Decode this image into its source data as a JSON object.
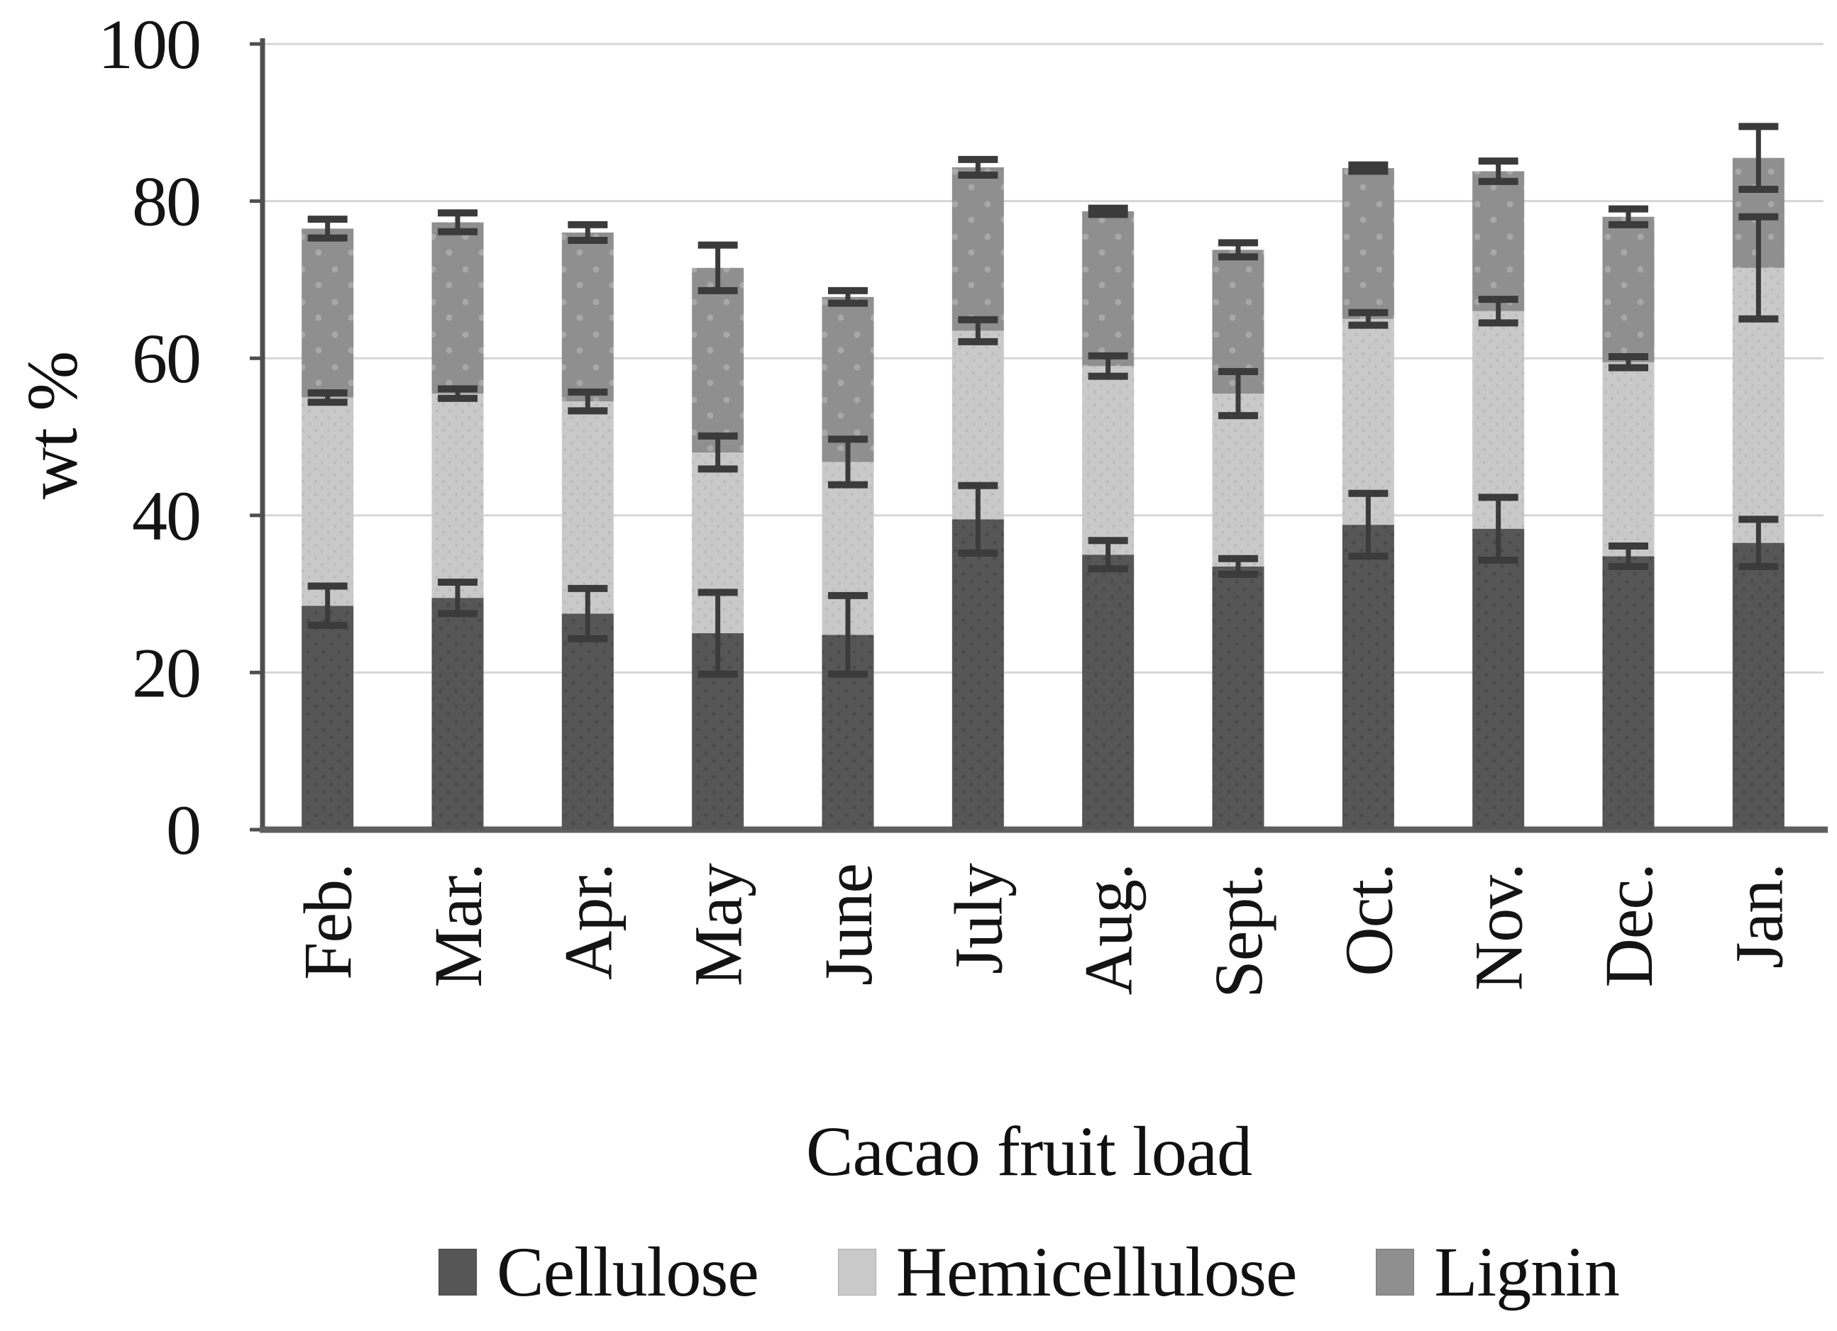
{
  "figure": {
    "background": "#ffffff",
    "axis_color": "#4f4f4f",
    "grid_color": "#d6d6d6",
    "error_bar_color": "#3b3b3b",
    "text_color": "#141414"
  },
  "chart_data": {
    "type": "bar",
    "stacked": true,
    "title": "",
    "xlabel": "Cacao fruit load",
    "ylabel": "wt %",
    "grid": true,
    "legend_position": "bottom",
    "ylim": [
      0,
      100
    ],
    "yticks": [
      0,
      20,
      40,
      60,
      80,
      100
    ],
    "categories": [
      "Feb.",
      "Mar.",
      "Apr.",
      "May",
      "June",
      "July",
      "Aug.",
      "Sept.",
      "Oct.",
      "Nov.",
      "Dec.",
      "Jan."
    ],
    "series": [
      {
        "name": "Cellulose",
        "color": "#565656",
        "texture_color": "#4a4a4a",
        "values": [
          28.5,
          29.5,
          27.5,
          25.0,
          24.8,
          39.5,
          35.0,
          33.5,
          38.8,
          38.3,
          34.8,
          36.5
        ],
        "errors": [
          2.5,
          2.0,
          3.2,
          5.2,
          5.0,
          4.3,
          1.8,
          1.0,
          4.0,
          4.0,
          1.3,
          3.0
        ]
      },
      {
        "name": "Hemicellulose",
        "color": "#c9c9c9",
        "texture_color": "#bcbcbc",
        "values": [
          26.5,
          26.0,
          27.0,
          23.0,
          22.0,
          24.0,
          24.0,
          22.0,
          26.2,
          27.7,
          24.7,
          35.0
        ],
        "errors": [
          0.6,
          0.6,
          1.2,
          2.1,
          2.9,
          1.4,
          1.3,
          2.8,
          0.8,
          1.5,
          0.7,
          6.5
        ]
      },
      {
        "name": "Lignin",
        "color": "#8f8f8f",
        "texture_color": "#a8a8a8",
        "values": [
          21.5,
          21.8,
          21.5,
          23.5,
          21.0,
          20.8,
          19.7,
          18.3,
          19.2,
          17.8,
          18.5,
          14.0
        ],
        "errors": [
          1.2,
          1.2,
          1.0,
          2.9,
          0.8,
          1.0,
          0.4,
          0.9,
          0.4,
          1.3,
          1.0,
          4.0
        ]
      }
    ]
  }
}
